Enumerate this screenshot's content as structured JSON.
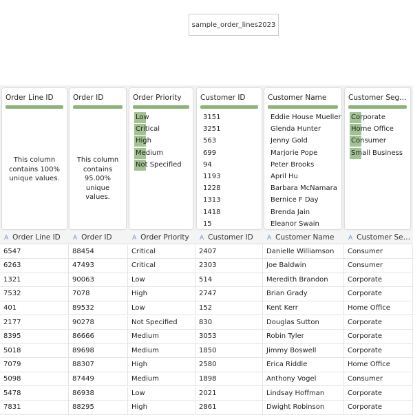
{
  "title": "sample_order_lines2023",
  "profiles": [
    {
      "name": "Order Line ID",
      "note": "This column contains 100% unique values."
    },
    {
      "name": "Order ID",
      "note": "This column contains 95.00% unique values."
    },
    {
      "name": "Order Priority",
      "values": [
        "Low",
        "Critical",
        "High",
        "Medium",
        "Not Specified"
      ]
    },
    {
      "name": "Customer ID",
      "values": [
        "3151",
        "3251",
        "563",
        "699",
        "94",
        "1193",
        "1228",
        "1313",
        "1418",
        "15"
      ]
    },
    {
      "name": "Customer Name",
      "values": [
        "Eddie House Mueller",
        "Glenda Hunter",
        "Jenny Gold",
        "Marjorie Pope",
        "Peter Brooks",
        "April Hu",
        "Barbara McNamara",
        "Bernice F Day",
        "Brenda Jain",
        "Eleanor Swain"
      ]
    },
    {
      "name": "Customer Segment",
      "values": [
        "Corporate",
        "Home Office",
        "Consumer",
        "Small Business"
      ]
    }
  ],
  "table": {
    "columns": [
      "Order Line ID",
      "Order ID",
      "Order Priority",
      "Customer ID",
      "Customer Name",
      "Customer Segment"
    ],
    "rows": [
      [
        "6547",
        "88454",
        "Critical",
        "2407",
        "Danielle Williamson",
        "Consumer"
      ],
      [
        "6263",
        "47493",
        "Critical",
        "2303",
        "Joe Baldwin",
        "Consumer"
      ],
      [
        "1321",
        "90063",
        "Low",
        "514",
        "Meredith Brandon",
        "Corporate"
      ],
      [
        "7532",
        "7078",
        "High",
        "2747",
        "Brian Grady",
        "Corporate"
      ],
      [
        "401",
        "89532",
        "Low",
        "152",
        "Kent Kerr",
        "Home Office"
      ],
      [
        "2177",
        "90278",
        "Not Specified",
        "830",
        "Douglas Sutton",
        "Corporate"
      ],
      [
        "8395",
        "86666",
        "Medium",
        "3053",
        "Robin Tyler",
        "Corporate"
      ],
      [
        "5018",
        "89698",
        "Medium",
        "1850",
        "Jimmy Boswell",
        "Corporate"
      ],
      [
        "7079",
        "88307",
        "High",
        "2580",
        "Erica Riddle",
        "Home Office"
      ],
      [
        "5098",
        "87449",
        "Medium",
        "1898",
        "Anthony Vogel",
        "Consumer"
      ],
      [
        "5478",
        "86938",
        "Low",
        "2021",
        "Lindsay Hoffman",
        "Corporate"
      ],
      [
        "7831",
        "88295",
        "High",
        "2861",
        "Dwight Robinson",
        "Corporate"
      ]
    ]
  }
}
